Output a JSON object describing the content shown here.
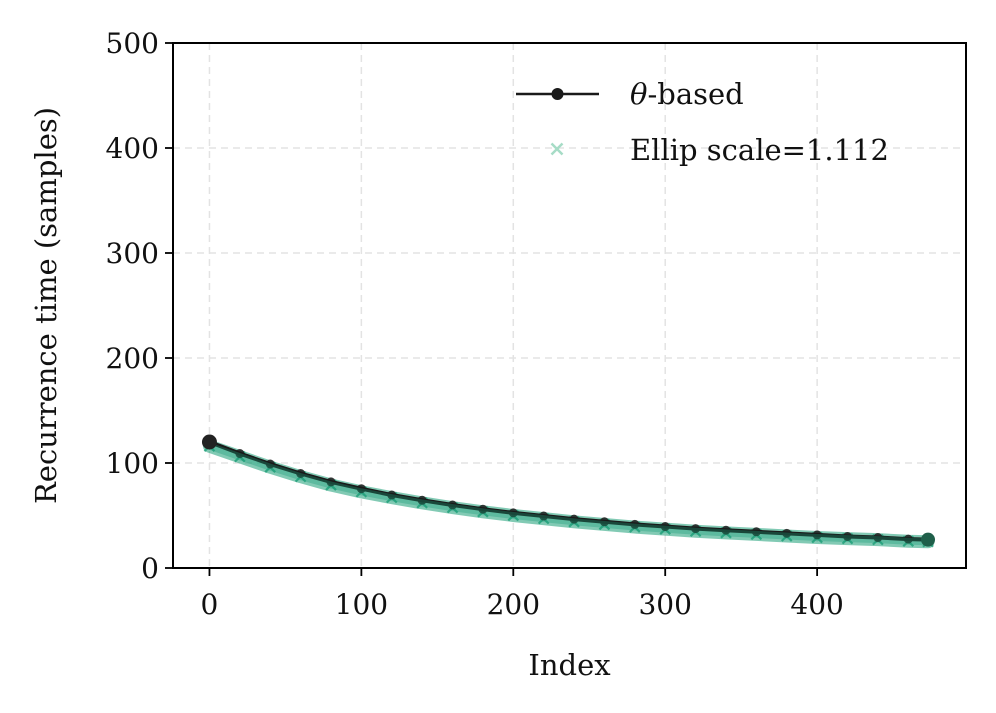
{
  "chart_data": {
    "type": "line",
    "title": "",
    "xlabel": "Index",
    "ylabel": "Recurrence time (samples)",
    "xlim": [
      -24,
      498
    ],
    "ylim": [
      0,
      500
    ],
    "xticks": [
      0,
      100,
      200,
      300,
      400
    ],
    "yticks": [
      0,
      100,
      200,
      300,
      400,
      500
    ],
    "xtick_labels": [
      "0",
      "100",
      "200",
      "300",
      "400"
    ],
    "ytick_labels": [
      "0",
      "100",
      "200",
      "300",
      "400",
      "500"
    ],
    "grid": true,
    "legend_position": "top-right",
    "series": [
      {
        "name_prefix": "θ",
        "name": "-based",
        "marker": "circle",
        "color": "#1a1a1a",
        "x": [
          0,
          20,
          40,
          60,
          80,
          100,
          120,
          140,
          160,
          180,
          200,
          220,
          240,
          260,
          280,
          300,
          320,
          340,
          360,
          380,
          400,
          420,
          440,
          460,
          473
        ],
        "values": [
          120,
          109,
          99,
          90,
          82,
          75.5,
          69.5,
          64.5,
          60,
          56,
          52.5,
          49.5,
          46.5,
          44,
          41.5,
          39.5,
          37.5,
          36,
          34.5,
          33,
          31.5,
          30,
          29,
          27.5,
          27
        ]
      },
      {
        "name": "Ellip scale=1.112",
        "marker": "x",
        "color": "#1b9e77",
        "legend_color": "#a6dcc6",
        "x": [
          0,
          20,
          40,
          60,
          80,
          100,
          120,
          140,
          160,
          180,
          200,
          220,
          240,
          260,
          280,
          300,
          320,
          340,
          360,
          380,
          400,
          420,
          440,
          460,
          473
        ],
        "values": [
          116,
          106,
          96,
          87,
          79,
          72.5,
          67,
          62,
          57.5,
          53.5,
          50,
          47,
          44,
          41.5,
          39,
          37,
          35,
          33.5,
          32,
          30.5,
          29,
          28,
          27,
          25.5,
          25
        ]
      }
    ]
  }
}
